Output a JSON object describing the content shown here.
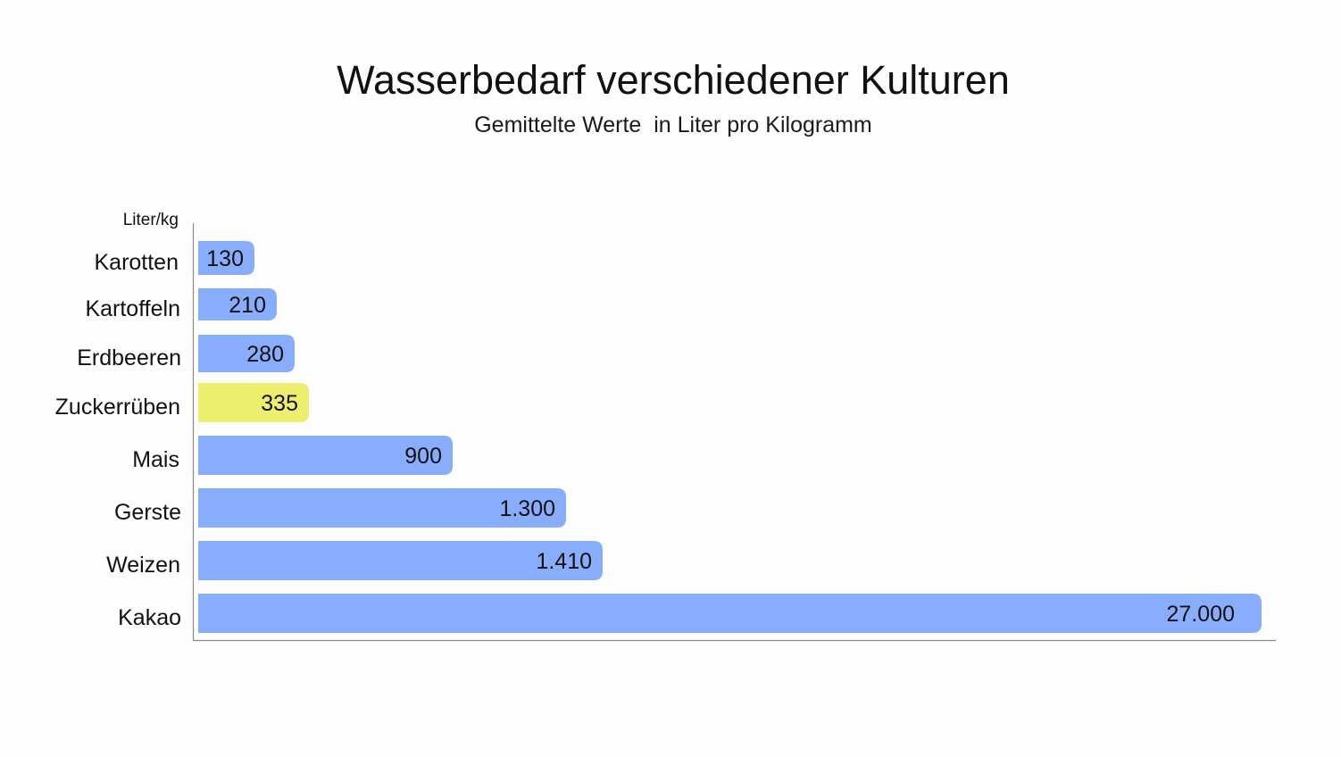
{
  "chart_data": {
    "type": "bar",
    "orientation": "horizontal",
    "title": "Wasserbedarf verschiedener Kulturen",
    "subtitle": "Gemittelte Werte  in Liter pro Kilogramm",
    "unit_label": "Liter/kg",
    "categories": [
      "Karotten",
      "Kartoffeln",
      "Erdbeeren",
      "Zuckerrüben",
      "Mais",
      "Gerste",
      "Weizen",
      "Kakao"
    ],
    "values": [
      130,
      210,
      280,
      335,
      900,
      1300,
      1410,
      27000
    ],
    "value_labels": [
      "130",
      "210",
      "280",
      "335",
      "900",
      "1.300",
      "1.410",
      "27.000"
    ],
    "highlight_category": "Zuckerrüben",
    "axis_scale": "non-linear (bars not proportional)",
    "grid": false,
    "legend": "none",
    "colors": {
      "bar": "#89adfd",
      "highlight": "#eded6e",
      "axis": "#888888",
      "text": "#111111"
    }
  }
}
